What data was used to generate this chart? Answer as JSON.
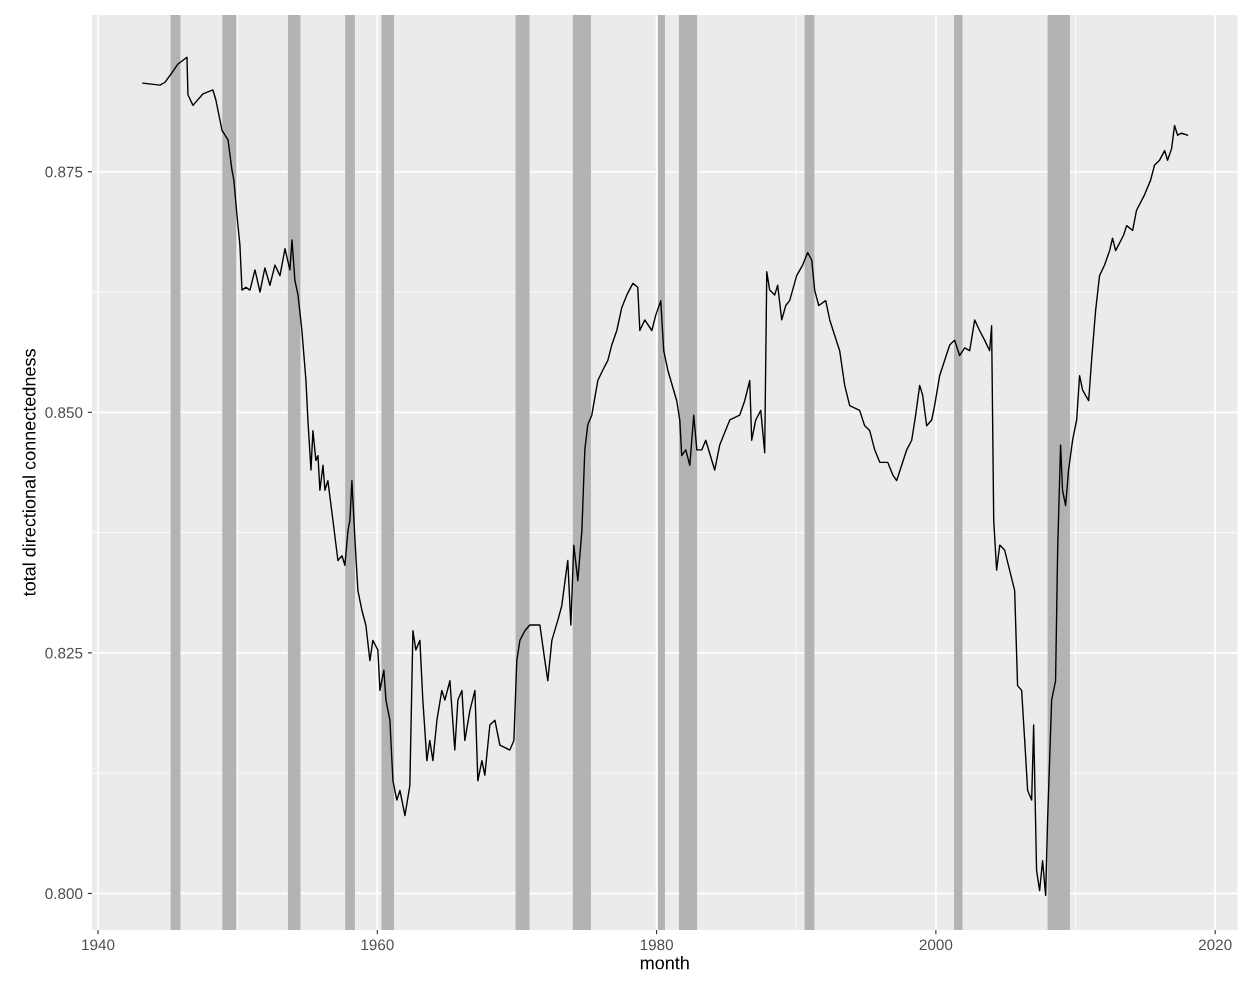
{
  "chart_data": {
    "type": "line",
    "xlabel": "month",
    "ylabel": "total directional connectedness",
    "xlim": [
      1939.57,
      2021.6
    ],
    "ylim": [
      0.7962,
      0.8913
    ],
    "xticks": [
      1940,
      1960,
      1980,
      2000,
      2020
    ],
    "yticks": [
      {
        "value": 0.8,
        "label": "0.800"
      },
      0.825,
      {
        "value": 0.85,
        "label": "0.850"
      },
      0.875
    ],
    "grid": true,
    "marker": "none",
    "line_style": "solid",
    "bands": [
      {
        "axis": "x",
        "from": 1945.2,
        "to": 1945.9,
        "color": "#b3b3b3"
      },
      {
        "axis": "x",
        "from": 1948.9,
        "to": 1949.9,
        "color": "#b3b3b3"
      },
      {
        "axis": "x",
        "from": 1953.6,
        "to": 1954.5,
        "color": "#b3b3b3"
      },
      {
        "axis": "x",
        "from": 1957.7,
        "to": 1958.4,
        "color": "#b3b3b3"
      },
      {
        "axis": "x",
        "from": 1960.3,
        "to": 1961.2,
        "color": "#b3b3b3"
      },
      {
        "axis": "x",
        "from": 1969.9,
        "to": 1970.9,
        "color": "#b3b3b3"
      },
      {
        "axis": "x",
        "from": 1974.0,
        "to": 1975.3,
        "color": "#b3b3b3"
      },
      {
        "axis": "x",
        "from": 1980.1,
        "to": 1980.6,
        "color": "#b3b3b3"
      },
      {
        "axis": "x",
        "from": 1981.6,
        "to": 1982.9,
        "color": "#b3b3b3"
      },
      {
        "axis": "x",
        "from": 1990.6,
        "to": 1991.3,
        "color": "#b3b3b3"
      },
      {
        "axis": "x",
        "from": 2001.3,
        "to": 2001.9,
        "color": "#b3b3b3"
      },
      {
        "axis": "x",
        "from": 2008.0,
        "to": 2009.6,
        "color": "#b3b3b3"
      }
    ],
    "series": [
      {
        "color": "#000000",
        "x": [
          1943.22,
          1944.44,
          1944.8,
          1945.3,
          1945.73,
          1946.37,
          1946.44,
          1946.8,
          1947.52,
          1948.23,
          1948.45,
          1948.88,
          1949.31,
          1949.59,
          1949.73,
          1949.95,
          1950.16,
          1950.31,
          1950.59,
          1950.88,
          1951.24,
          1951.6,
          1951.95,
          1952.31,
          1952.67,
          1953.03,
          1953.39,
          1953.74,
          1953.89,
          1954.1,
          1954.32,
          1954.6,
          1954.89,
          1955.03,
          1955.25,
          1955.39,
          1955.6,
          1955.75,
          1955.89,
          1956.11,
          1956.25,
          1956.46,
          1956.82,
          1957.18,
          1957.47,
          1957.68,
          1957.9,
          1958.04,
          1958.18,
          1958.4,
          1958.61,
          1958.9,
          1959.18,
          1959.47,
          1959.68,
          1960.04,
          1960.19,
          1960.47,
          1960.62,
          1960.9,
          1961.12,
          1961.4,
          1961.62,
          1961.98,
          1962.33,
          1962.55,
          1962.76,
          1963.05,
          1963.26,
          1963.55,
          1963.76,
          1963.98,
          1964.27,
          1964.62,
          1964.84,
          1965.2,
          1965.55,
          1965.77,
          1966.06,
          1966.27,
          1966.63,
          1966.99,
          1967.2,
          1967.49,
          1967.7,
          1968.06,
          1968.42,
          1968.78,
          1969.49,
          1969.78,
          1969.99,
          1970.21,
          1970.57,
          1970.92,
          1971.64,
          1972.0,
          1972.21,
          1972.5,
          1972.93,
          1973.21,
          1973.5,
          1973.64,
          1973.86,
          1974.07,
          1974.36,
          1974.65,
          1974.86,
          1975.07,
          1975.36,
          1975.79,
          1976.15,
          1976.51,
          1976.79,
          1977.15,
          1977.51,
          1977.87,
          1978.3,
          1978.65,
          1978.8,
          1979.15,
          1979.66,
          1979.94,
          1980.3,
          1980.51,
          1980.8,
          1981.44,
          1981.66,
          1981.8,
          1982.09,
          1982.38,
          1982.66,
          1982.88,
          1983.24,
          1983.52,
          1984.16,
          1984.52,
          1985.24,
          1985.95,
          1986.31,
          1986.67,
          1986.81,
          1987.1,
          1987.46,
          1987.74,
          1987.89,
          1988.1,
          1988.46,
          1988.67,
          1988.96,
          1989.25,
          1989.53,
          1990.03,
          1990.46,
          1990.82,
          1991.11,
          1991.32,
          1991.61,
          1992.11,
          1992.4,
          1992.75,
          1993.11,
          1993.47,
          1993.83,
          1994.54,
          1994.9,
          1995.26,
          1995.62,
          1995.98,
          1996.55,
          1996.91,
          1997.19,
          1997.55,
          1997.91,
          1998.27,
          1998.55,
          1998.84,
          1999.05,
          1999.34,
          1999.7,
          1999.91,
          2000.27,
          2000.63,
          2000.99,
          2001.34,
          2001.7,
          2002.06,
          2002.42,
          2002.78,
          2003.13,
          2003.49,
          2003.85,
          2003.99,
          2004.14,
          2004.35,
          2004.57,
          2004.92,
          2005.28,
          2005.64,
          2005.85,
          2006.14,
          2006.36,
          2006.57,
          2006.86,
          2007.0,
          2007.21,
          2007.43,
          2007.64,
          2007.86,
          2008.0,
          2008.29,
          2008.57,
          2008.72,
          2008.93,
          2009.07,
          2009.29,
          2009.5,
          2009.79,
          2010.08,
          2010.29,
          2010.51,
          2010.94,
          2011.15,
          2011.44,
          2011.72,
          2012.08,
          2012.44,
          2012.65,
          2012.87,
          2013.44,
          2013.66,
          2014.09,
          2014.37,
          2014.94,
          2015.37,
          2015.66,
          2016.02,
          2016.38,
          2016.59,
          2016.88,
          2017.09,
          2017.31,
          2017.59,
          2018.02
        ],
        "values": [
          0.8842,
          0.884,
          0.8843,
          0.8853,
          0.8862,
          0.8869,
          0.883,
          0.8819,
          0.8831,
          0.8835,
          0.8824,
          0.8793,
          0.8783,
          0.8752,
          0.8741,
          0.8705,
          0.8674,
          0.8627,
          0.863,
          0.8627,
          0.8648,
          0.8625,
          0.865,
          0.8632,
          0.8653,
          0.8642,
          0.867,
          0.8648,
          0.8679,
          0.8637,
          0.8622,
          0.8585,
          0.8533,
          0.8492,
          0.844,
          0.8481,
          0.845,
          0.8455,
          0.8419,
          0.8445,
          0.8419,
          0.8429,
          0.8388,
          0.8346,
          0.8351,
          0.8341,
          0.8377,
          0.8388,
          0.8429,
          0.8367,
          0.8315,
          0.8294,
          0.8279,
          0.8242,
          0.8263,
          0.8253,
          0.8211,
          0.8232,
          0.8201,
          0.818,
          0.8117,
          0.8097,
          0.8107,
          0.8081,
          0.8112,
          0.8273,
          0.8253,
          0.8263,
          0.8201,
          0.8138,
          0.8159,
          0.8138,
          0.818,
          0.8211,
          0.8201,
          0.8221,
          0.8149,
          0.8201,
          0.8211,
          0.8159,
          0.819,
          0.8211,
          0.8117,
          0.8138,
          0.8123,
          0.8175,
          0.818,
          0.8154,
          0.8149,
          0.8159,
          0.8242,
          0.8263,
          0.8273,
          0.8279,
          0.8279,
          0.8242,
          0.8221,
          0.8263,
          0.8284,
          0.8299,
          0.8331,
          0.8346,
          0.8279,
          0.8362,
          0.8325,
          0.8377,
          0.8461,
          0.8487,
          0.8497,
          0.8533,
          0.8544,
          0.8554,
          0.857,
          0.8585,
          0.8609,
          0.8622,
          0.8634,
          0.863,
          0.8585,
          0.8596,
          0.8585,
          0.8601,
          0.8616,
          0.8564,
          0.8544,
          0.8512,
          0.8492,
          0.8455,
          0.8461,
          0.8445,
          0.8497,
          0.8461,
          0.8461,
          0.8471,
          0.844,
          0.8466,
          0.8492,
          0.8497,
          0.8512,
          0.8533,
          0.8471,
          0.8492,
          0.8502,
          0.8458,
          0.8646,
          0.8627,
          0.8622,
          0.8632,
          0.8596,
          0.8611,
          0.8616,
          0.8642,
          0.8653,
          0.8666,
          0.8658,
          0.8627,
          0.8611,
          0.8616,
          0.8596,
          0.858,
          0.8564,
          0.8528,
          0.8507,
          0.8502,
          0.8486,
          0.8481,
          0.8461,
          0.8448,
          0.8448,
          0.8435,
          0.8429,
          0.8445,
          0.8461,
          0.8471,
          0.8497,
          0.8528,
          0.8518,
          0.8486,
          0.8492,
          0.8507,
          0.8538,
          0.8554,
          0.857,
          0.8575,
          0.8559,
          0.8567,
          0.8564,
          0.8596,
          0.8585,
          0.8575,
          0.8564,
          0.859,
          0.8388,
          0.8336,
          0.8362,
          0.8357,
          0.8336,
          0.8315,
          0.8216,
          0.8211,
          0.8159,
          0.8107,
          0.8097,
          0.8175,
          0.8024,
          0.8003,
          0.8034,
          0.7998,
          0.8076,
          0.8201,
          0.8221,
          0.8357,
          0.8466,
          0.8419,
          0.8403,
          0.844,
          0.8471,
          0.8492,
          0.8538,
          0.8523,
          0.8512,
          0.8554,
          0.8606,
          0.8642,
          0.8653,
          0.8668,
          0.8681,
          0.8668,
          0.8684,
          0.8694,
          0.8689,
          0.871,
          0.8726,
          0.8741,
          0.8757,
          0.8762,
          0.8772,
          0.8762,
          0.8774,
          0.8798,
          0.8788,
          0.879,
          0.8788
        ]
      }
    ]
  }
}
